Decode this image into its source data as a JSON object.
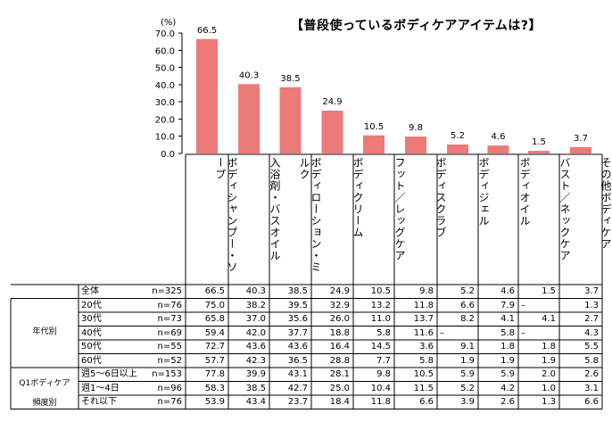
{
  "chart_data": {
    "type": "bar",
    "title": "【普段使っているボディケアアイテムは?】",
    "unit": "(%)",
    "yticks": [
      "70.0",
      "60.0",
      "50.0",
      "40.0",
      "30.0",
      "20.0",
      "10.0",
      "0.0"
    ],
    "ylim": [
      0,
      70
    ],
    "grid": false,
    "bar_color": "#ec7a78",
    "categories": [
      "ボディシャンプー・ソープ",
      "入浴剤・バスオイル",
      "ボディローション・ミルク",
      "ボディクリーム",
      "フット／レッグケア",
      "ボディスクラブ",
      "ボディジェル",
      "ボディオイル",
      "バスト／ネックケア",
      "その他ボディケア"
    ],
    "values": [
      66.5,
      40.3,
      38.5,
      24.9,
      10.5,
      9.8,
      5.2,
      4.6,
      1.5,
      3.7
    ],
    "value_labels": [
      "66.5",
      "40.3",
      "38.5",
      "24.9",
      "10.5",
      "9.8",
      "5.2",
      "4.6",
      "1.5",
      "3.7"
    ],
    "table": {
      "groups": [
        {
          "label": "",
          "rows": [
            0
          ]
        },
        {
          "label": "年代別",
          "rows": [
            1,
            2,
            3,
            4,
            5
          ]
        },
        {
          "label": "Q1ボディケア\n頻度別",
          "rows": [
            6,
            7,
            8
          ]
        }
      ],
      "rows": [
        {
          "label": "全体",
          "n": "n=325",
          "values": [
            "66.5",
            "40.3",
            "38.5",
            "24.9",
            "10.5",
            "9.8",
            "5.2",
            "4.6",
            "1.5",
            "3.7"
          ]
        },
        {
          "label": "20代",
          "n": "n=76",
          "values": [
            "75.0",
            "38.2",
            "39.5",
            "32.9",
            "13.2",
            "11.8",
            "6.6",
            "7.9",
            "–",
            "1.3"
          ]
        },
        {
          "label": "30代",
          "n": "n=73",
          "values": [
            "65.8",
            "37.0",
            "35.6",
            "26.0",
            "11.0",
            "13.7",
            "8.2",
            "4.1",
            "4.1",
            "2.7"
          ]
        },
        {
          "label": "40代",
          "n": "n=69",
          "values": [
            "59.4",
            "42.0",
            "37.7",
            "18.8",
            "5.8",
            "11.6",
            "–",
            "5.8",
            "–",
            "4.3"
          ]
        },
        {
          "label": "50代",
          "n": "n=55",
          "values": [
            "72.7",
            "43.6",
            "43.6",
            "16.4",
            "14.5",
            "3.6",
            "9.1",
            "1.8",
            "1.8",
            "5.5"
          ]
        },
        {
          "label": "60代",
          "n": "n=52",
          "values": [
            "57.7",
            "42.3",
            "36.5",
            "28.8",
            "7.7",
            "5.8",
            "1.9",
            "1.9",
            "1.9",
            "5.8"
          ]
        },
        {
          "label": "週5～6日以上",
          "n": "n=153",
          "values": [
            "77.8",
            "39.9",
            "43.1",
            "28.1",
            "9.8",
            "10.5",
            "5.9",
            "5.9",
            "2.0",
            "2.6"
          ]
        },
        {
          "label": "週1～4日",
          "n": "n=96",
          "values": [
            "58.3",
            "38.5",
            "42.7",
            "25.0",
            "10.4",
            "11.5",
            "5.2",
            "4.2",
            "1.0",
            "3.1"
          ]
        },
        {
          "label": "それ以下",
          "n": "n=76",
          "values": [
            "53.9",
            "43.4",
            "23.7",
            "18.4",
            "11.8",
            "6.6",
            "3.9",
            "2.6",
            "1.3",
            "6.6"
          ]
        }
      ]
    }
  }
}
